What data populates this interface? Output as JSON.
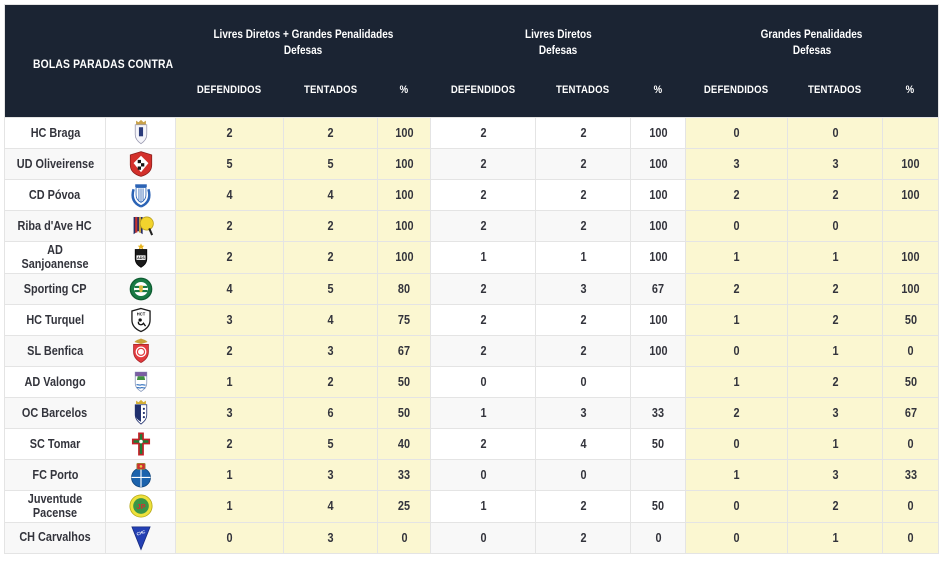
{
  "colors": {
    "header_bg": "#1b2433",
    "header_text": "#ffffff",
    "highlight": "#fbf7d1",
    "row_alt": "#f8f8f8",
    "border": "#e4e4e4",
    "text": "#33343c"
  },
  "chart_data": {
    "type": "table",
    "title": "BOLAS PARADAS CONTRA",
    "column_groups": [
      {
        "line1": "Livres Diretos + Grandes Penalidades",
        "line2": "Defesas"
      },
      {
        "line1": "Livres Diretos",
        "line2": "Defesas"
      },
      {
        "line1": "Grandes Penalidades",
        "line2": "Defesas"
      }
    ],
    "sub_columns": [
      "DEFENDIDOS",
      "TENTADOS",
      "%"
    ],
    "highlighted_groups": [
      0,
      2
    ],
    "rows": [
      {
        "team": "HC Braga",
        "logo": "hc-braga-logo",
        "values": [
          "2",
          "2",
          "100",
          "2",
          "2",
          "100",
          "0",
          "0",
          ""
        ]
      },
      {
        "team": "UD Oliveirense",
        "logo": "ud-oliveirense-logo",
        "values": [
          "5",
          "5",
          "100",
          "2",
          "2",
          "100",
          "3",
          "3",
          "100"
        ]
      },
      {
        "team": "CD Póvoa",
        "logo": "cd-povoa-logo",
        "values": [
          "4",
          "4",
          "100",
          "2",
          "2",
          "100",
          "2",
          "2",
          "100"
        ]
      },
      {
        "team": "Riba d'Ave HC",
        "logo": "riba-dave-logo",
        "values": [
          "2",
          "2",
          "100",
          "2",
          "2",
          "100",
          "0",
          "0",
          ""
        ]
      },
      {
        "team": "AD Sanjoanense",
        "logo": "ad-sanjoanense-logo",
        "values": [
          "2",
          "2",
          "100",
          "1",
          "1",
          "100",
          "1",
          "1",
          "100"
        ]
      },
      {
        "team": "Sporting CP",
        "logo": "sporting-cp-logo",
        "values": [
          "4",
          "5",
          "80",
          "2",
          "3",
          "67",
          "2",
          "2",
          "100"
        ]
      },
      {
        "team": "HC Turquel",
        "logo": "hc-turquel-logo",
        "values": [
          "3",
          "4",
          "75",
          "2",
          "2",
          "100",
          "1",
          "2",
          "50"
        ]
      },
      {
        "team": "SL Benfica",
        "logo": "sl-benfica-logo",
        "values": [
          "2",
          "3",
          "67",
          "2",
          "2",
          "100",
          "0",
          "1",
          "0"
        ]
      },
      {
        "team": "AD Valongo",
        "logo": "ad-valongo-logo",
        "values": [
          "1",
          "2",
          "50",
          "0",
          "0",
          "",
          "1",
          "2",
          "50"
        ]
      },
      {
        "team": "OC Barcelos",
        "logo": "oc-barcelos-logo",
        "values": [
          "3",
          "6",
          "50",
          "1",
          "3",
          "33",
          "2",
          "3",
          "67"
        ]
      },
      {
        "team": "SC Tomar",
        "logo": "sc-tomar-logo",
        "values": [
          "2",
          "5",
          "40",
          "2",
          "4",
          "50",
          "0",
          "1",
          "0"
        ]
      },
      {
        "team": "FC Porto",
        "logo": "fc-porto-logo",
        "values": [
          "1",
          "3",
          "33",
          "0",
          "0",
          "",
          "1",
          "3",
          "33"
        ]
      },
      {
        "team": "Juventude Pacense",
        "logo": "juventude-pacense-logo",
        "values": [
          "1",
          "4",
          "25",
          "1",
          "2",
          "50",
          "0",
          "2",
          "0"
        ]
      },
      {
        "team": "CH Carvalhos",
        "logo": "ch-carvalhos-logo",
        "values": [
          "0",
          "3",
          "0",
          "0",
          "2",
          "0",
          "0",
          "1",
          "0"
        ]
      }
    ]
  }
}
